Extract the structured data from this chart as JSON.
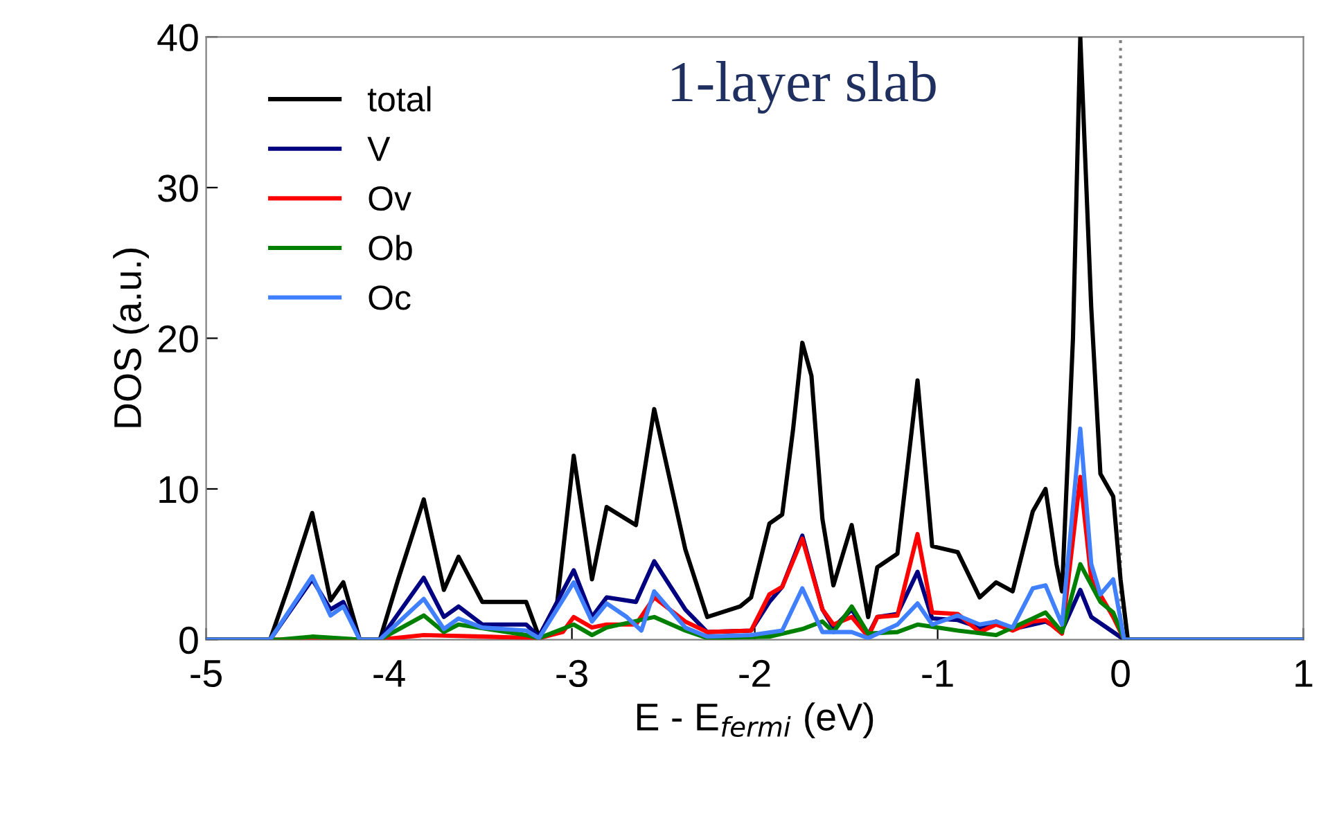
{
  "chart_data": {
    "type": "line",
    "title": "1-layer slab",
    "xlabel": "E - E$_{fermi}$ (eV)",
    "ylabel": "DOS (a.u.)",
    "xlim": [
      -5,
      1
    ],
    "ylim": [
      0,
      40
    ],
    "xticks": [
      -5,
      -4,
      -3,
      -2,
      -1,
      0,
      1
    ],
    "yticks": [
      0,
      10,
      20,
      30,
      40
    ],
    "grid": false,
    "legend": "top left",
    "marker": "none",
    "line_style": "solid",
    "ref_lines": [
      {
        "axis": "x",
        "value": 0,
        "color": "#808080",
        "line_style": "dotted"
      }
    ],
    "series": [
      {
        "name": "total",
        "color": "#000000",
        "x": [
          -5,
          -4.65,
          -4.55,
          -4.42,
          -4.32,
          -4.25,
          -4.16,
          -4.05,
          -3.95,
          -3.81,
          -3.7,
          -3.62,
          -3.49,
          -3.25,
          -3.18,
          -3.08,
          -2.99,
          -2.89,
          -2.81,
          -2.65,
          -2.55,
          -2.38,
          -2.26,
          -2.08,
          -2.02,
          -1.92,
          -1.85,
          -1.79,
          -1.74,
          -1.69,
          -1.63,
          -1.57,
          -1.47,
          -1.38,
          -1.33,
          -1.22,
          -1.11,
          -1.03,
          -0.89,
          -0.77,
          -0.68,
          -0.59,
          -0.48,
          -0.41,
          -0.35,
          -0.32,
          -0.26,
          -0.22,
          -0.16,
          -0.11,
          -0.04,
          0,
          0.04,
          1
        ],
        "values": [
          0,
          0,
          3.5,
          8.4,
          2.6,
          3.8,
          0,
          0,
          4,
          9.3,
          3.3,
          5.5,
          2.5,
          2.5,
          0.2,
          2.5,
          12.2,
          4.0,
          8.8,
          7.6,
          15.3,
          6,
          1.5,
          2.2,
          2.8,
          7.7,
          8.3,
          14,
          19.7,
          17.5,
          8,
          3.6,
          7.6,
          1.5,
          4.8,
          5.7,
          17.2,
          6.2,
          5.8,
          2.8,
          3.8,
          3.2,
          8.5,
          10.0,
          5.0,
          3.2,
          20,
          40,
          22,
          11,
          9.5,
          4,
          0,
          0
        ]
      },
      {
        "name": "V",
        "color": "#000080",
        "x": [
          -5,
          -4.65,
          -4.42,
          -4.32,
          -4.25,
          -4.16,
          -4.05,
          -3.81,
          -3.7,
          -3.62,
          -3.49,
          -3.25,
          -3.18,
          -2.99,
          -2.89,
          -2.81,
          -2.65,
          -2.55,
          -2.38,
          -2.26,
          -2.02,
          -1.92,
          -1.85,
          -1.74,
          -1.63,
          -1.57,
          -1.47,
          -1.38,
          -1.33,
          -1.22,
          -1.11,
          -1.03,
          -0.89,
          -0.77,
          -0.68,
          -0.59,
          -0.48,
          -0.41,
          -0.32,
          -0.22,
          -0.16,
          -0.04,
          0.02,
          1
        ],
        "values": [
          0,
          0,
          4.0,
          2.0,
          2.5,
          0,
          0,
          4.1,
          1.5,
          2.2,
          1.0,
          1.0,
          0.2,
          4.6,
          1.5,
          2.8,
          2.5,
          5.2,
          2.0,
          0.5,
          0.6,
          2.5,
          3.5,
          6.9,
          2.0,
          0.8,
          2.0,
          0.3,
          1.5,
          1.7,
          4.5,
          1.4,
          1.3,
          0.8,
          1.2,
          0.7,
          1.0,
          1.2,
          0.6,
          3.3,
          1.5,
          0.5,
          0,
          0
        ]
      },
      {
        "name": "Ov",
        "color": "#ff0000",
        "x": [
          -5,
          -4.05,
          -3.81,
          -3.49,
          -3.18,
          -3.05,
          -2.99,
          -2.89,
          -2.81,
          -2.65,
          -2.55,
          -2.38,
          -2.26,
          -2.02,
          -1.92,
          -1.85,
          -1.74,
          -1.63,
          -1.57,
          -1.47,
          -1.38,
          -1.33,
          -1.22,
          -1.11,
          -1.03,
          -0.89,
          -0.77,
          -0.68,
          -0.59,
          -0.48,
          -0.41,
          -0.32,
          -0.22,
          -0.16,
          -0.04,
          0.02,
          1
        ],
        "values": [
          0,
          0,
          0.3,
          0.2,
          0.1,
          0.5,
          1.5,
          0.8,
          1.0,
          1.0,
          2.8,
          1.2,
          0.5,
          0.6,
          3.0,
          3.5,
          6.7,
          2.0,
          1.0,
          1.5,
          0.2,
          1.5,
          1.6,
          7.0,
          1.8,
          1.7,
          0.5,
          1.0,
          0.6,
          1.2,
          1.3,
          0.4,
          10.8,
          4,
          1.5,
          0,
          0
        ]
      },
      {
        "name": "Ob",
        "color": "#008000",
        "x": [
          -5,
          -4.6,
          -4.42,
          -4.16,
          -4.05,
          -3.81,
          -3.7,
          -3.62,
          -3.25,
          -3.18,
          -2.99,
          -2.89,
          -2.81,
          -2.55,
          -2.38,
          -2.26,
          -1.92,
          -1.74,
          -1.63,
          -1.57,
          -1.47,
          -1.38,
          -1.22,
          -1.11,
          -0.89,
          -0.68,
          -0.48,
          -0.41,
          -0.32,
          -0.22,
          -0.11,
          -0.04,
          0.02,
          1
        ],
        "values": [
          0,
          0,
          0.2,
          0,
          0,
          1.6,
          0.5,
          1.0,
          0.3,
          0.1,
          1.0,
          0.3,
          0.8,
          1.5,
          0.6,
          0.1,
          0.2,
          0.7,
          1.2,
          0.5,
          2.2,
          0.4,
          0.5,
          1.0,
          0.6,
          0.3,
          1.4,
          1.8,
          0.5,
          5.0,
          2.5,
          1.8,
          0,
          0
        ]
      },
      {
        "name": "Oc",
        "color": "#4080ff",
        "x": [
          -5,
          -4.65,
          -4.42,
          -4.32,
          -4.25,
          -4.16,
          -4.05,
          -3.81,
          -3.7,
          -3.62,
          -3.49,
          -3.25,
          -3.18,
          -2.99,
          -2.89,
          -2.81,
          -2.7,
          -2.62,
          -2.55,
          -2.38,
          -2.26,
          -2.02,
          -1.85,
          -1.74,
          -1.63,
          -1.47,
          -1.38,
          -1.22,
          -1.11,
          -1.03,
          -0.89,
          -0.77,
          -0.68,
          -0.59,
          -0.48,
          -0.41,
          -0.32,
          -0.22,
          -0.16,
          -0.11,
          -0.04,
          0.02,
          1
        ],
        "values": [
          0,
          0,
          4.2,
          1.6,
          2.2,
          0,
          0,
          2.7,
          0.7,
          1.4,
          0.8,
          0.6,
          0.1,
          3.8,
          1.2,
          2.4,
          1.5,
          0.6,
          3.2,
          0.8,
          0.2,
          0.3,
          0.6,
          3.4,
          0.5,
          0.5,
          0.1,
          1.0,
          2.4,
          1.0,
          1.6,
          1.0,
          1.2,
          0.8,
          3.4,
          3.6,
          1.0,
          14.0,
          5,
          3.0,
          4.0,
          0,
          0
        ]
      }
    ]
  }
}
